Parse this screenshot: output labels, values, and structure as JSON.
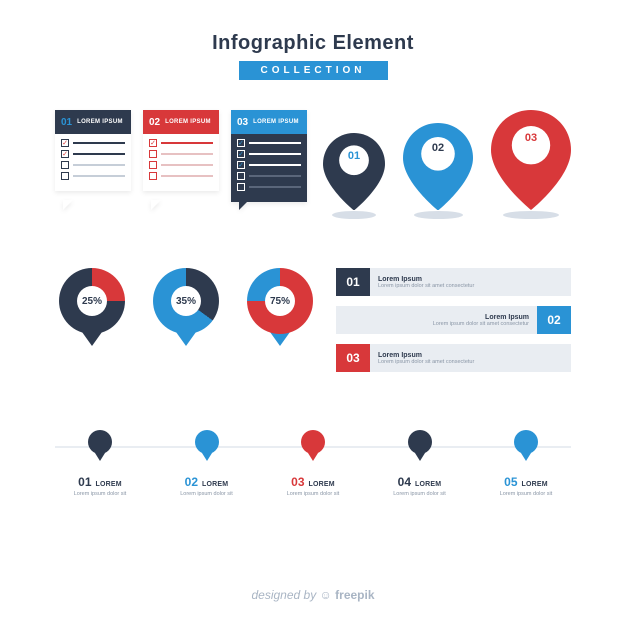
{
  "colors": {
    "darkNavy": "#2e3a4e",
    "red": "#d8383a",
    "blue": "#2a93d5",
    "lightBlue": "#6eb7e4",
    "grayBody": "#e9edf2",
    "grayText": "#8a96a6",
    "white": "#ffffff",
    "shadow": "#d7dee7"
  },
  "header": {
    "title": "Infographic Element",
    "title_color": "#2e3a4e",
    "title_fontsize": 20,
    "subtitle": "COLLECTION",
    "subtitle_bg": "#2a93d5",
    "subtitle_color": "#ffffff"
  },
  "checklists": [
    {
      "num": "01",
      "label": "LOREM IPSUM",
      "header_bg": "#2e3a4e",
      "num_color": "#2a93d5",
      "label_color": "#ffffff",
      "body_bg": "#ffffff",
      "checks": [
        {
          "checked": true,
          "box_border": "#2e3a4e",
          "tick": "#d8383a",
          "line": "#2e3a4e"
        },
        {
          "checked": true,
          "box_border": "#2e3a4e",
          "tick": "#d8383a",
          "line": "#2e3a4e"
        },
        {
          "checked": false,
          "box_border": "#2e3a4e",
          "tick": "",
          "line": "#c6ced8"
        },
        {
          "checked": false,
          "box_border": "#2e3a4e",
          "tick": "",
          "line": "#c6ced8"
        }
      ],
      "tail_color": "#ffffff"
    },
    {
      "num": "02",
      "label": "LOREM IPSUM",
      "header_bg": "#d8383a",
      "num_color": "#ffffff",
      "label_color": "#ffffff",
      "body_bg": "#ffffff",
      "checks": [
        {
          "checked": true,
          "box_border": "#d8383a",
          "tick": "#d8383a",
          "line": "#d8383a"
        },
        {
          "checked": false,
          "box_border": "#d8383a",
          "tick": "",
          "line": "#e7c1c2"
        },
        {
          "checked": false,
          "box_border": "#d8383a",
          "tick": "",
          "line": "#e7c1c2"
        },
        {
          "checked": false,
          "box_border": "#d8383a",
          "tick": "",
          "line": "#e7c1c2"
        }
      ],
      "tail_color": "#ffffff"
    },
    {
      "num": "03",
      "label": "LOREM IPSUM",
      "header_bg": "#2a93d5",
      "num_color": "#ffffff",
      "label_color": "#ffffff",
      "body_bg": "#2e3a4e",
      "checks": [
        {
          "checked": true,
          "box_border": "#ffffff",
          "tick": "#2a93d5",
          "line": "#ffffff"
        },
        {
          "checked": true,
          "box_border": "#ffffff",
          "tick": "#2a93d5",
          "line": "#ffffff"
        },
        {
          "checked": true,
          "box_border": "#ffffff",
          "tick": "#2a93d5",
          "line": "#ffffff"
        },
        {
          "checked": false,
          "box_border": "#ffffff",
          "tick": "",
          "line": "#5a667a"
        },
        {
          "checked": false,
          "box_border": "#ffffff",
          "tick": "",
          "line": "#5a667a"
        }
      ],
      "tail_color": "#2e3a4e"
    }
  ],
  "pins": [
    {
      "num": "01",
      "fill": "#2e3a4e",
      "inner": "#ffffff",
      "num_color": "#2a93d5",
      "size": 62,
      "base": "#d7dee7"
    },
    {
      "num": "02",
      "fill": "#2a93d5",
      "inner": "#ffffff",
      "num_color": "#2e3a4e",
      "size": 70,
      "base": "#d7dee7"
    },
    {
      "num": "03",
      "fill": "#d8383a",
      "inner": "#ffffff",
      "num_color": "#d8383a",
      "size": 80,
      "base": "#d7dee7"
    }
  ],
  "donuts": [
    {
      "percent": 25,
      "label": "25%",
      "main": "#2e3a4e",
      "accent": "#d8383a",
      "text": "#2e3a4e"
    },
    {
      "percent": 35,
      "label": "35%",
      "main": "#2a93d5",
      "accent": "#2e3a4e",
      "text": "#2e3a4e"
    },
    {
      "percent": 75,
      "label": "75%",
      "main": "#2a93d5",
      "accent": "#d8383a",
      "text": "#2e3a4e"
    }
  ],
  "bars": [
    {
      "num": "01",
      "badge_bg": "#2e3a4e",
      "align": "left",
      "title": "Lorem Ipsum",
      "sub": "Lorem ipsum dolor sit amet consectetur",
      "body_bg": "#e9edf2",
      "title_color": "#2e3a4e",
      "sub_color": "#8a96a6"
    },
    {
      "num": "02",
      "badge_bg": "#2a93d5",
      "align": "right",
      "title": "Lorem Ipsum",
      "sub": "Lorem ipsum dolor sit amet consectetur",
      "body_bg": "#e9edf2",
      "title_color": "#2e3a4e",
      "sub_color": "#8a96a6"
    },
    {
      "num": "03",
      "badge_bg": "#d8383a",
      "align": "left",
      "title": "Lorem Ipsum",
      "sub": "Lorem ipsum dolor sit amet consectetur",
      "body_bg": "#e9edf2",
      "title_color": "#2e3a4e",
      "sub_color": "#8a96a6"
    }
  ],
  "timeline": [
    {
      "num": "01",
      "color": "#2e3a4e",
      "label": "LOREM",
      "sub": "Lorem ipsum dolor sit"
    },
    {
      "num": "02",
      "color": "#2a93d5",
      "label": "LOREM",
      "sub": "Lorem ipsum dolor sit"
    },
    {
      "num": "03",
      "color": "#d8383a",
      "label": "LOREM",
      "sub": "Lorem ipsum dolor sit"
    },
    {
      "num": "04",
      "color": "#2e3a4e",
      "label": "LOREM",
      "sub": "Lorem ipsum dolor sit"
    },
    {
      "num": "05",
      "color": "#2a93d5",
      "label": "LOREM",
      "sub": "Lorem ipsum dolor sit"
    }
  ],
  "footer": {
    "prefix": "designed by ",
    "brand": "freepik",
    "color": "#a9b5c4"
  }
}
